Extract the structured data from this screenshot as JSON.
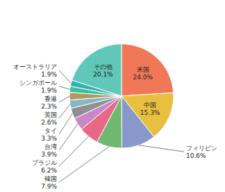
{
  "chart_data": {
    "type": "pie",
    "categories": [
      "米国",
      "中国",
      "フィリピン",
      "韓国",
      "ブラジル",
      "台湾",
      "タイ",
      "英国",
      "香港",
      "シンガポール",
      "オーストラリア",
      "その他"
    ],
    "values": [
      24.0,
      15.3,
      10.6,
      7.9,
      6.2,
      3.9,
      3.3,
      2.6,
      2.3,
      1.9,
      1.9,
      20.1
    ],
    "value_labels": [
      "24.0%",
      "15.3%",
      "10.6%",
      "7.9%",
      "6.2%",
      "3.9%",
      "3.3%",
      "2.6%",
      "2.3%",
      "1.9%",
      "1.9%",
      "20.1%"
    ],
    "colors": [
      "#f07858",
      "#e8c040",
      "#8898c8",
      "#70b870",
      "#e86888",
      "#c888c8",
      "#909090",
      "#88b8c8",
      "#b09860",
      "#38c0a0",
      "#38b0b0",
      "#60c8b8"
    ],
    "data_labels": true
  }
}
